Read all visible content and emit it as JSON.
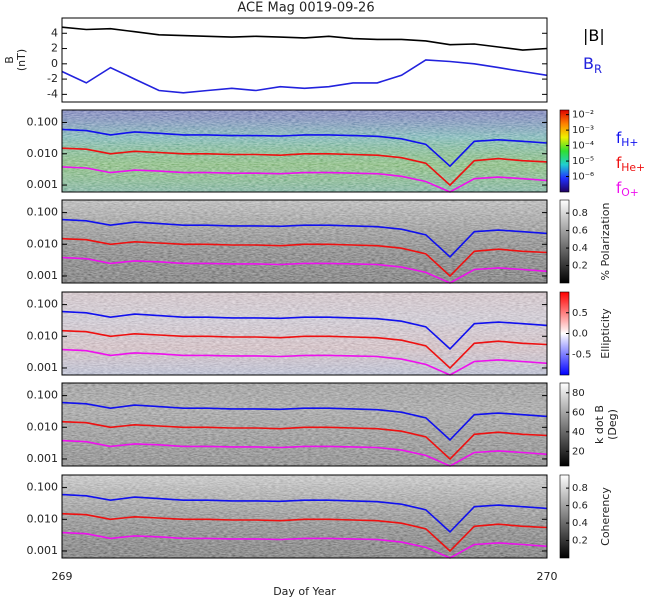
{
  "chart_data": [
    {
      "type": "line",
      "title": "ACE Mag 0019-09-26",
      "ylabel": "B",
      "ylabel_unit": "(nT)",
      "ylim": [
        -5,
        6
      ],
      "yticks": [
        -4,
        -2,
        0,
        2,
        4
      ],
      "x": [
        269,
        269.05,
        269.1,
        269.15,
        269.2,
        269.25,
        269.3,
        269.35,
        269.4,
        269.45,
        269.5,
        269.55,
        269.6,
        269.65,
        269.7,
        269.75,
        269.8,
        269.85,
        269.9,
        269.95,
        270
      ],
      "series": [
        {
          "name": "|B|",
          "color": "#000000",
          "values": [
            4.8,
            4.5,
            4.6,
            4.2,
            3.8,
            3.7,
            3.6,
            3.5,
            3.6,
            3.5,
            3.4,
            3.6,
            3.3,
            3.2,
            3.2,
            3.0,
            2.5,
            2.6,
            2.2,
            1.8,
            2.0
          ]
        },
        {
          "name": "B",
          "subscript": "R",
          "color": "#2222dd",
          "values": [
            -1,
            -2.5,
            -0.5,
            -2,
            -3.5,
            -3.8,
            -3.5,
            -3.2,
            -3.5,
            -3.0,
            -3.2,
            -3.0,
            -2.5,
            -2.5,
            -1.5,
            0.5,
            0.3,
            0,
            -0.5,
            -1,
            -1.5
          ]
        }
      ]
    },
    {
      "type": "spectrogram",
      "log_y": true,
      "ylim": [
        0.0006,
        0.25
      ],
      "yticks": [
        0.001,
        {
          "value": 0.01,
          "label": "0.010"
        },
        {
          "value": 0.1,
          "label": "0.100"
        }
      ],
      "x": [
        269,
        269.05,
        269.1,
        269.15,
        269.2,
        269.25,
        269.3,
        269.35,
        269.4,
        269.45,
        269.5,
        269.55,
        269.6,
        269.65,
        269.7,
        269.75,
        269.8,
        269.85,
        269.9,
        269.95,
        270
      ],
      "series": [
        {
          "name": "f",
          "subscript": "H+",
          "color": "#1010ee",
          "values": [
            0.06,
            0.055,
            0.04,
            0.05,
            0.045,
            0.04,
            0.04,
            0.038,
            0.038,
            0.037,
            0.04,
            0.04,
            0.038,
            0.036,
            0.03,
            0.02,
            0.004,
            0.025,
            0.028,
            0.025,
            0.022
          ]
        },
        {
          "name": "f",
          "subscript": "He+",
          "color": "#ee1010",
          "values": [
            0.015,
            0.014,
            0.01,
            0.012,
            0.011,
            0.01,
            0.01,
            0.0095,
            0.0095,
            0.009,
            0.01,
            0.01,
            0.0095,
            0.009,
            0.0075,
            0.005,
            0.001,
            0.006,
            0.007,
            0.006,
            0.0055
          ]
        },
        {
          "name": "f",
          "subscript": "O+",
          "color": "#ee10ee",
          "values": [
            0.0038,
            0.0035,
            0.0025,
            0.003,
            0.0028,
            0.0025,
            0.0025,
            0.0024,
            0.0024,
            0.0023,
            0.0025,
            0.0025,
            0.0024,
            0.0023,
            0.0019,
            0.0013,
            0.0006,
            0.0016,
            0.0018,
            0.0016,
            0.0014
          ]
        }
      ],
      "background": [
        "#3050d0",
        "#30c8c8",
        "#60d040",
        "#40c0a0"
      ],
      "colorbar": {
        "log": true,
        "lim": [
          1e-07,
          0.02
        ],
        "colors": [
          "#200060",
          "#2030ff",
          "#20d0d0",
          "#30e030",
          "#f0f000",
          "#ff8000",
          "#e00000"
        ],
        "ticks": [
          {
            "value": 0.01,
            "label": "10⁻²"
          },
          {
            "value": 0.001,
            "label": "10⁻³"
          },
          {
            "value": 0.0001,
            "label": "10⁻⁴"
          },
          {
            "value": 1e-05,
            "label": "10⁻⁵"
          },
          {
            "value": 1e-06,
            "label": "10⁻⁶"
          }
        ]
      }
    },
    {
      "type": "spectrogram",
      "log_y": true,
      "ylim": [
        0.0006,
        0.25
      ],
      "yticks": [
        0.001,
        {
          "value": 0.01,
          "label": "0.010"
        },
        {
          "value": 0.1,
          "label": "0.100"
        }
      ],
      "x": [
        269,
        269.05,
        269.1,
        269.15,
        269.2,
        269.25,
        269.3,
        269.35,
        269.4,
        269.45,
        269.5,
        269.55,
        269.6,
        269.65,
        269.7,
        269.75,
        269.8,
        269.85,
        269.9,
        269.95,
        270
      ],
      "series": [
        {
          "color": "#1010ee",
          "values": [
            0.06,
            0.055,
            0.04,
            0.05,
            0.045,
            0.04,
            0.04,
            0.038,
            0.038,
            0.037,
            0.04,
            0.04,
            0.038,
            0.036,
            0.03,
            0.02,
            0.004,
            0.025,
            0.028,
            0.025,
            0.022
          ]
        },
        {
          "color": "#ee1010",
          "values": [
            0.015,
            0.014,
            0.01,
            0.012,
            0.011,
            0.01,
            0.01,
            0.0095,
            0.0095,
            0.009,
            0.01,
            0.01,
            0.0095,
            0.009,
            0.0075,
            0.005,
            0.001,
            0.006,
            0.007,
            0.006,
            0.0055
          ]
        },
        {
          "color": "#ee10ee",
          "values": [
            0.0038,
            0.0035,
            0.0025,
            0.003,
            0.0028,
            0.0025,
            0.0025,
            0.0024,
            0.0024,
            0.0023,
            0.0025,
            0.0025,
            0.0024,
            0.0023,
            0.0019,
            0.0013,
            0.0006,
            0.0016,
            0.0018,
            0.0016,
            0.0014
          ]
        }
      ],
      "background": [
        "#c8c8c8",
        "#909090",
        "#505050",
        "#202020"
      ],
      "colorbar": {
        "label": "% Polarization",
        "lim": [
          0,
          0.95
        ],
        "colors": [
          "#000000",
          "#ffffff"
        ],
        "ticks": [
          0.2,
          0.4,
          0.6,
          0.8
        ]
      }
    },
    {
      "type": "spectrogram",
      "log_y": true,
      "ylim": [
        0.0006,
        0.25
      ],
      "yticks": [
        0.001,
        {
          "value": 0.01,
          "label": "0.010"
        },
        {
          "value": 0.1,
          "label": "0.100"
        }
      ],
      "x": [
        269,
        269.05,
        269.1,
        269.15,
        269.2,
        269.25,
        269.3,
        269.35,
        269.4,
        269.45,
        269.5,
        269.55,
        269.6,
        269.65,
        269.7,
        269.75,
        269.8,
        269.85,
        269.9,
        269.95,
        270
      ],
      "series": [
        {
          "color": "#1010ee",
          "values": [
            0.06,
            0.055,
            0.04,
            0.05,
            0.045,
            0.04,
            0.04,
            0.038,
            0.038,
            0.037,
            0.04,
            0.04,
            0.038,
            0.036,
            0.03,
            0.02,
            0.004,
            0.025,
            0.028,
            0.025,
            0.022
          ]
        },
        {
          "color": "#ee1010",
          "values": [
            0.015,
            0.014,
            0.01,
            0.012,
            0.011,
            0.01,
            0.01,
            0.0095,
            0.0095,
            0.009,
            0.01,
            0.01,
            0.0095,
            0.009,
            0.0075,
            0.005,
            0.001,
            0.006,
            0.007,
            0.006,
            0.0055
          ]
        },
        {
          "color": "#ee10ee",
          "values": [
            0.0038,
            0.0035,
            0.0025,
            0.003,
            0.0028,
            0.0025,
            0.0025,
            0.0024,
            0.0024,
            0.0023,
            0.0025,
            0.0025,
            0.0024,
            0.0023,
            0.0019,
            0.0013,
            0.0006,
            0.0016,
            0.0018,
            0.0016,
            0.0014
          ]
        }
      ],
      "background": [
        "#f0d8e0",
        "#e8e0f0",
        "#f0d0d8",
        "#c8d0f0"
      ],
      "colorbar": {
        "label": "Ellipticity",
        "lim": [
          -1,
          1
        ],
        "colors": [
          "#0000ff",
          "#ffffff",
          "#ff0000"
        ],
        "ticks": [
          -0.5,
          {
            "value": 0,
            "label": "0.0"
          },
          0.5
        ]
      }
    },
    {
      "type": "spectrogram",
      "log_y": true,
      "ylim": [
        0.0006,
        0.25
      ],
      "yticks": [
        0.001,
        {
          "value": 0.01,
          "label": "0.010"
        },
        {
          "value": 0.1,
          "label": "0.100"
        }
      ],
      "x": [
        269,
        269.05,
        269.1,
        269.15,
        269.2,
        269.25,
        269.3,
        269.35,
        269.4,
        269.45,
        269.5,
        269.55,
        269.6,
        269.65,
        269.7,
        269.75,
        269.8,
        269.85,
        269.9,
        269.95,
        270
      ],
      "series": [
        {
          "color": "#1010ee",
          "values": [
            0.06,
            0.055,
            0.04,
            0.05,
            0.045,
            0.04,
            0.04,
            0.038,
            0.038,
            0.037,
            0.04,
            0.04,
            0.038,
            0.036,
            0.03,
            0.02,
            0.004,
            0.025,
            0.028,
            0.025,
            0.022
          ]
        },
        {
          "color": "#ee1010",
          "values": [
            0.015,
            0.014,
            0.01,
            0.012,
            0.011,
            0.01,
            0.01,
            0.0095,
            0.0095,
            0.009,
            0.01,
            0.01,
            0.0095,
            0.009,
            0.0075,
            0.005,
            0.001,
            0.006,
            0.007,
            0.006,
            0.0055
          ]
        },
        {
          "color": "#ee10ee",
          "values": [
            0.0038,
            0.0035,
            0.0025,
            0.003,
            0.0028,
            0.0025,
            0.0025,
            0.0024,
            0.0024,
            0.0023,
            0.0025,
            0.0025,
            0.0024,
            0.0023,
            0.0019,
            0.0013,
            0.0006,
            0.0016,
            0.0018,
            0.0016,
            0.0014
          ]
        }
      ],
      "background": [
        "#909090",
        "#a0a0a0",
        "#808080",
        "#606060"
      ],
      "colorbar": {
        "label": "k dot B",
        "label_unit": "(Deg)",
        "lim": [
          5,
          90
        ],
        "colors": [
          "#000000",
          "#ffffff"
        ],
        "ticks": [
          20,
          40,
          60,
          80
        ]
      }
    },
    {
      "type": "spectrogram",
      "log_y": true,
      "ylim": [
        0.0006,
        0.25
      ],
      "yticks": [
        0.001,
        {
          "value": 0.01,
          "label": "0.010"
        },
        {
          "value": 0.1,
          "label": "0.100"
        }
      ],
      "x": [
        269,
        269.05,
        269.1,
        269.15,
        269.2,
        269.25,
        269.3,
        269.35,
        269.4,
        269.45,
        269.5,
        269.55,
        269.6,
        269.65,
        269.7,
        269.75,
        269.8,
        269.85,
        269.9,
        269.95,
        270
      ],
      "series": [
        {
          "color": "#1010ee",
          "values": [
            0.06,
            0.055,
            0.04,
            0.05,
            0.045,
            0.04,
            0.04,
            0.038,
            0.038,
            0.037,
            0.04,
            0.04,
            0.038,
            0.036,
            0.03,
            0.02,
            0.004,
            0.025,
            0.028,
            0.025,
            0.022
          ]
        },
        {
          "color": "#ee1010",
          "values": [
            0.015,
            0.014,
            0.01,
            0.012,
            0.011,
            0.01,
            0.01,
            0.0095,
            0.0095,
            0.009,
            0.01,
            0.01,
            0.0095,
            0.009,
            0.0075,
            0.005,
            0.001,
            0.006,
            0.007,
            0.006,
            0.0055
          ]
        },
        {
          "color": "#ee10ee",
          "values": [
            0.0038,
            0.0035,
            0.0025,
            0.003,
            0.0028,
            0.0025,
            0.0025,
            0.0024,
            0.0024,
            0.0023,
            0.0025,
            0.0025,
            0.0024,
            0.0023,
            0.0019,
            0.0013,
            0.0006,
            0.0016,
            0.0018,
            0.0016,
            0.0014
          ]
        }
      ],
      "background": [
        "#e0e0e0",
        "#a0a0a0",
        "#606060",
        "#202020"
      ],
      "colorbar": {
        "label": "Coherency",
        "lim": [
          0,
          0.95
        ],
        "colors": [
          "#000000",
          "#ffffff"
        ],
        "ticks": [
          0.2,
          0.4,
          0.6,
          0.8
        ]
      },
      "xlim": [
        269,
        270
      ],
      "xticks": [
        269,
        270
      ],
      "xlabel": "Day of Year"
    }
  ]
}
